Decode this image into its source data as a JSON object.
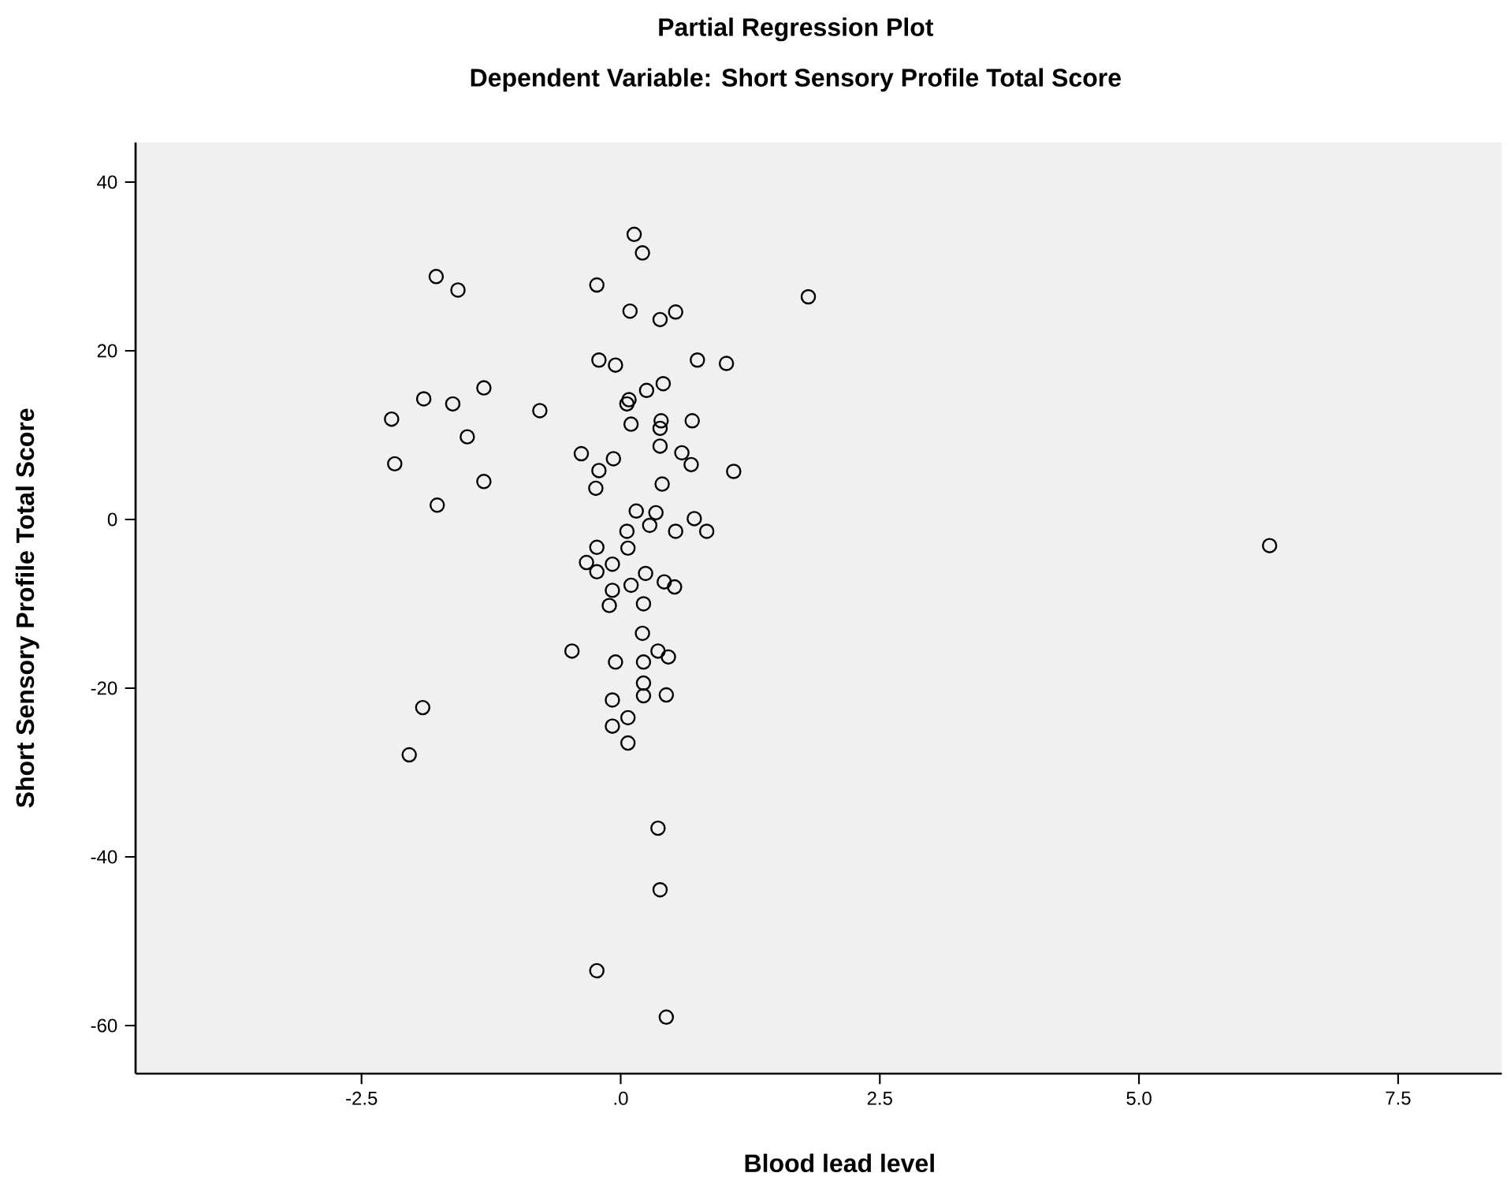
{
  "chart_data": {
    "type": "scatter",
    "title": "Partial Regression Plot",
    "subtitle": "Dependent Variable: Short Sensory Profile Total Score",
    "xlabel": "Blood lead level",
    "ylabel": "Short Sensory Profile Total Score",
    "xlim": [
      -4.68,
      8.5
    ],
    "ylim": [
      -65.7,
      44.7
    ],
    "xticks": [
      -2.5,
      {
        "value": 0,
        "label": ".0"
      },
      2.5,
      {
        "value": 5,
        "label": "5.0"
      },
      7.5
    ],
    "yticks": [
      -60,
      -40,
      -20,
      0,
      20,
      40
    ],
    "marker": "circle",
    "grid": false,
    "legend": false,
    "series": [
      {
        "color": "#000000",
        "x": [
          -1.78,
          -1.57,
          0.13,
          0.21,
          -0.23,
          0.09,
          0.53,
          0.38,
          -0.21,
          -0.05,
          0.74,
          1.02,
          -1.32,
          -1.9,
          -1.62,
          -2.21,
          -0.78,
          -1.48,
          -2.18,
          -1.32,
          -1.77,
          0.41,
          0.25,
          0.08,
          0.06,
          0.1,
          0.39,
          0.38,
          0.69,
          0.38,
          0.59,
          0.68,
          1.09,
          -0.38,
          -0.07,
          -0.21,
          -0.24,
          0.4,
          0.15,
          0.34,
          0.71,
          0.28,
          0.06,
          0.53,
          0.83,
          0.07,
          -0.23,
          -0.33,
          -0.08,
          -0.23,
          0.24,
          0.42,
          0.52,
          0.1,
          -0.08,
          -0.11,
          0.22,
          0.21,
          -0.47,
          0.36,
          0.46,
          -0.05,
          0.22,
          0.22,
          0.22,
          0.44,
          -0.08,
          0.07,
          -0.08,
          0.07,
          -1.91,
          -2.04,
          0.36,
          0.38,
          -0.23,
          0.44,
          1.81,
          6.26
        ],
        "values": [
          28.8,
          27.2,
          33.8,
          31.6,
          27.8,
          24.7,
          24.6,
          23.7,
          18.9,
          18.3,
          18.9,
          18.5,
          15.6,
          14.3,
          13.7,
          11.9,
          12.9,
          9.8,
          6.6,
          4.5,
          1.7,
          16.1,
          15.3,
          14.2,
          13.7,
          11.3,
          11.7,
          10.8,
          11.7,
          8.7,
          7.9,
          6.5,
          5.7,
          7.8,
          7.2,
          5.8,
          3.7,
          4.2,
          1.0,
          0.8,
          0.1,
          -0.7,
          -1.4,
          -1.4,
          -1.4,
          -3.4,
          -3.3,
          -5.1,
          -5.3,
          -6.2,
          -6.4,
          -7.4,
          -8.0,
          -7.8,
          -8.4,
          -10.2,
          -10.0,
          -13.5,
          -15.6,
          -15.6,
          -16.3,
          -16.9,
          -16.9,
          -19.4,
          -20.9,
          -20.8,
          -21.4,
          -23.5,
          -24.5,
          -26.5,
          -22.3,
          -27.9,
          -36.6,
          -43.9,
          -53.5,
          -59.0,
          26.4,
          -3.1
        ]
      }
    ]
  }
}
